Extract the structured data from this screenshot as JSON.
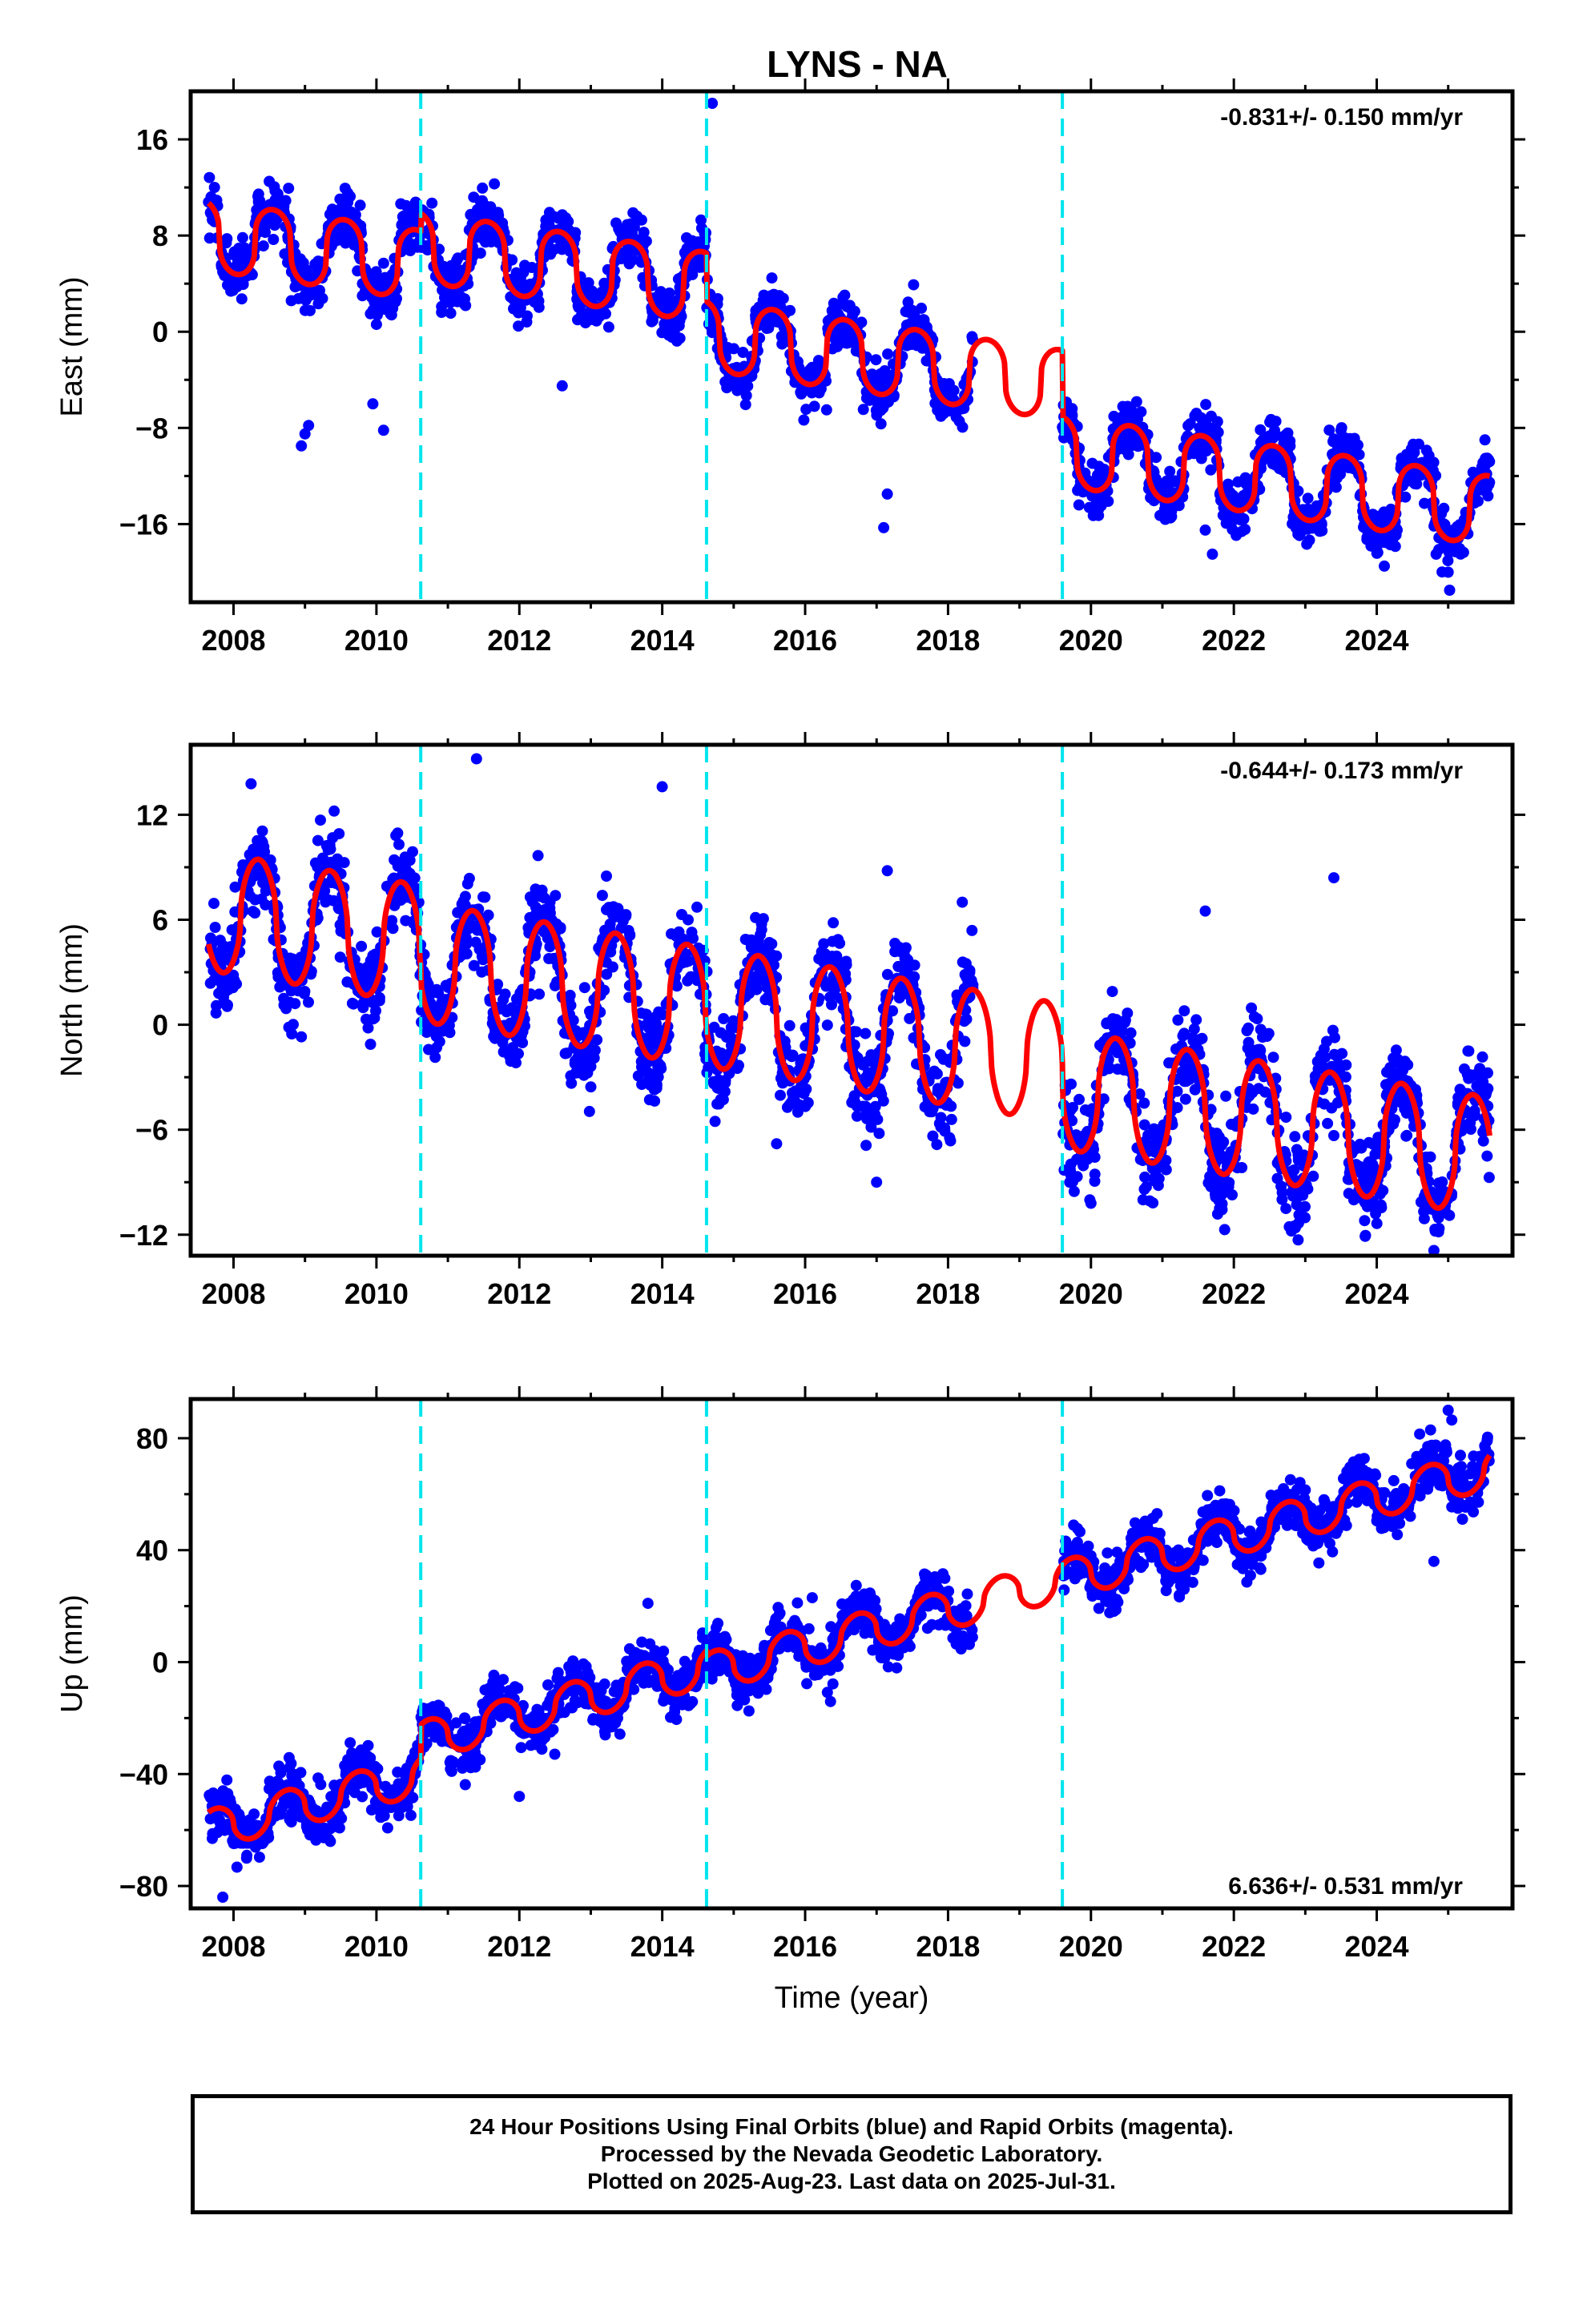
{
  "title": "LYNS - NA",
  "colors": {
    "points": "#0000ff",
    "fit": "#ff0000",
    "events": "#00e5ee",
    "frame": "#000000"
  },
  "chart_data": [
    {
      "type": "scatter",
      "ylabel": "East (mm)",
      "xlabel": "",
      "xlim": [
        2007.4,
        2025.9
      ],
      "ylim": [
        -22.5,
        20
      ],
      "xticks": [
        2008,
        2010,
        2012,
        2014,
        2016,
        2018,
        2020,
        2022,
        2024
      ],
      "xtick_labels": [
        "2008",
        "2010",
        "2012",
        "2014",
        "2016",
        "2018",
        "2020",
        "2022",
        "2024"
      ],
      "yticks": [
        16,
        8,
        0,
        -8,
        -16
      ],
      "ytick_labels": [
        "16",
        "8",
        "0",
        "−8",
        "−16"
      ],
      "annotation": "-0.831+/- 0.150 mm/yr",
      "annotation_position": "top-right",
      "event_lines_x": [
        2010.62,
        2014.62,
        2019.6
      ],
      "data_range": [
        2007.65,
        2025.58
      ],
      "gap": [
        2018.35,
        2019.6
      ],
      "model": {
        "offset": 8.0,
        "trend": -0.831,
        "amp": 2.9,
        "phase": 2008.55,
        "sharp": 3.0,
        "noise": 1.1,
        "n": 2400,
        "seed": 11,
        "steps": [
          [
            2010.62,
            1.5
          ],
          [
            2014.62,
            -4.0
          ],
          [
            2019.6,
            -5.5
          ]
        ]
      },
      "fit_line": "red",
      "outliers": [
        {
          "x": 2008.95,
          "y": -9.5
        },
        {
          "x": 2009.0,
          "y": -8.5
        },
        {
          "x": 2009.05,
          "y": -7.8
        },
        {
          "x": 2009.95,
          "y": -6.0
        },
        {
          "x": 2010.1,
          "y": -8.2
        },
        {
          "x": 2014.7,
          "y": 19.0
        },
        {
          "x": 2017.1,
          "y": -16.3
        },
        {
          "x": 2017.15,
          "y": -13.5
        },
        {
          "x": 2021.6,
          "y": -16.5
        },
        {
          "x": 2021.7,
          "y": -18.5
        },
        {
          "x": 2022.85,
          "y": -15.5
        },
        {
          "x": 2025.0,
          "y": -20.0
        },
        {
          "x": 2025.02,
          "y": -21.5
        },
        {
          "x": 2024.98,
          "y": -17.5
        },
        {
          "x": 2011.65,
          "y": 12.3
        },
        {
          "x": 2012.6,
          "y": -4.5
        },
        {
          "x": 2016.3,
          "y": -6.5
        },
        {
          "x": 2024.1,
          "y": -15.0
        }
      ]
    },
    {
      "type": "scatter",
      "ylabel": "North (mm)",
      "xlabel": "",
      "xlim": [
        2007.4,
        2025.9
      ],
      "ylim": [
        -13.2,
        16
      ],
      "xticks": [
        2008,
        2010,
        2012,
        2014,
        2016,
        2018,
        2020,
        2022,
        2024
      ],
      "xtick_labels": [
        "2008",
        "2010",
        "2012",
        "2014",
        "2016",
        "2018",
        "2020",
        "2022",
        "2024"
      ],
      "yticks": [
        12,
        6,
        0,
        -6,
        -12
      ],
      "ytick_labels": [
        "12",
        "6",
        "0",
        "−6",
        "−12"
      ],
      "annotation": "-0.644+/- 0.173 mm/yr",
      "annotation_position": "top-right",
      "event_lines_x": [
        2010.62,
        2014.62,
        2019.6
      ],
      "data_range": [
        2007.65,
        2025.58
      ],
      "gap": [
        2018.35,
        2019.6
      ],
      "model": {
        "offset": 6.5,
        "trend": -0.644,
        "amp": 3.4,
        "phase": 2008.35,
        "sharp": 2.0,
        "noise": 1.3,
        "n": 2400,
        "seed": 23,
        "steps": [
          [
            2010.62,
            -1.0
          ],
          [
            2014.62,
            0.0
          ],
          [
            2019.6,
            -1.5
          ]
        ]
      },
      "fit_line": "red",
      "outliers": [
        {
          "x": 2011.4,
          "y": 15.2
        },
        {
          "x": 2014.0,
          "y": 13.6
        },
        {
          "x": 2023.4,
          "y": 8.4
        },
        {
          "x": 2017.15,
          "y": 8.8
        },
        {
          "x": 2021.6,
          "y": 6.5
        },
        {
          "x": 2022.85,
          "y": -11.5
        },
        {
          "x": 2022.9,
          "y": -12.3
        },
        {
          "x": 2017.0,
          "y": -9.0
        },
        {
          "x": 2021.8,
          "y": -10.5
        },
        {
          "x": 2020.0,
          "y": -10.2
        },
        {
          "x": 2018.2,
          "y": 7.0
        },
        {
          "x": 2015.6,
          "y": -6.8
        }
      ]
    },
    {
      "type": "scatter",
      "ylabel": "Up (mm)",
      "xlabel": "Time (year)",
      "xlim": [
        2007.4,
        2025.9
      ],
      "ylim": [
        -88,
        94
      ],
      "xticks": [
        2008,
        2010,
        2012,
        2014,
        2016,
        2018,
        2020,
        2022,
        2024
      ],
      "xtick_labels": [
        "2008",
        "2010",
        "2012",
        "2014",
        "2016",
        "2018",
        "2020",
        "2022",
        "2024"
      ],
      "yticks": [
        80,
        40,
        0,
        -40,
        -80
      ],
      "ytick_labels": [
        "80",
        "40",
        "0",
        "−40",
        "−80"
      ],
      "annotation": "6.636+/- 0.531 mm/yr",
      "annotation_position": "bottom-right",
      "event_lines_x": [
        2010.62,
        2014.62,
        2019.6
      ],
      "data_range": [
        2007.65,
        2025.58
      ],
      "gap": [
        2018.35,
        2019.6
      ],
      "model": {
        "offset": -60.0,
        "trend": 6.636,
        "amp": 7.0,
        "phase": 2008.75,
        "sharp": 2.0,
        "noise": 4.5,
        "n": 2400,
        "seed": 37,
        "steps": [
          [
            2010.62,
            12.0
          ],
          [
            2014.62,
            -2.0
          ],
          [
            2019.6,
            0.0
          ]
        ]
      },
      "fit_line": "red",
      "outliers": [
        {
          "x": 2025.0,
          "y": 90.0
        },
        {
          "x": 2025.05,
          "y": 86.5
        },
        {
          "x": 2024.6,
          "y": 81.5
        },
        {
          "x": 2007.85,
          "y": -84.0
        },
        {
          "x": 2012.0,
          "y": -48.0
        },
        {
          "x": 2013.8,
          "y": 21.0
        },
        {
          "x": 2016.1,
          "y": 23.0
        },
        {
          "x": 2017.6,
          "y": 25.0
        },
        {
          "x": 2020.0,
          "y": 38.0
        },
        {
          "x": 2024.8,
          "y": 36.0
        }
      ]
    }
  ],
  "footer": {
    "line1": "24 Hour Positions Using Final Orbits (blue) and Rapid Orbits (magenta).",
    "line2": "Processed by the Nevada Geodetic Laboratory.",
    "line3": "Plotted on 2025-Aug-23. Last data on 2025-Jul-31."
  }
}
